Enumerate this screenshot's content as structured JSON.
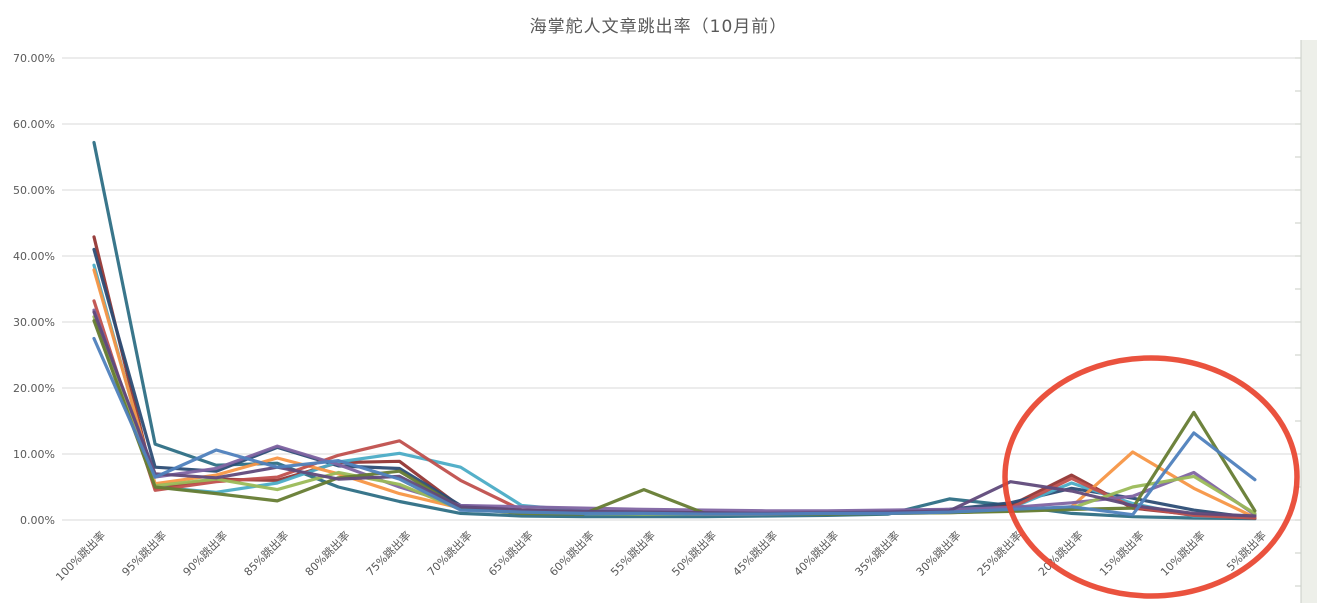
{
  "title": "海掌舵人文章跳出率（10月前）",
  "chart_data": {
    "type": "line",
    "title": "海掌舵人文章跳出率（10月前）",
    "xlabel": "",
    "ylabel": "",
    "ylim": [
      0,
      70
    ],
    "y_tick_step": 10,
    "y_ticks": [
      "0.00%",
      "10.00%",
      "20.00%",
      "30.00%",
      "40.00%",
      "50.00%",
      "60.00%",
      "70.00%"
    ],
    "grid": true,
    "legend": "none",
    "x_label_rotation_deg": -45,
    "axis_text_color": "#595959",
    "gridline_color": "#d9d9d9",
    "categories": [
      "100%跳出率",
      "95%跳出率",
      "90%跳出率",
      "85%跳出率",
      "80%跳出率",
      "75%跳出率",
      "70%跳出率",
      "65%跳出率",
      "60%跳出率",
      "55%跳出率",
      "50%跳出率",
      "45%跳出率",
      "40%跳出率",
      "35%跳出率",
      "30%跳出率",
      "25%跳出率",
      "20%跳出率",
      "15%跳出率",
      "10%跳出率",
      "5%跳出率"
    ],
    "series": [
      {
        "name": "dark-teal",
        "color": "#2E6F85",
        "values": [
          57.2,
          11.5,
          8.3,
          8.6,
          5.0,
          2.8,
          1.0,
          0.6,
          0.5,
          0.5,
          0.5,
          0.6,
          0.7,
          0.9,
          3.2,
          2.2,
          1.0,
          0.5,
          0.3,
          0.2
        ]
      },
      {
        "name": "dark-red",
        "color": "#943634",
        "values": [
          42.9,
          4.8,
          6.2,
          6.0,
          8.7,
          8.9,
          2.0,
          1.4,
          1.1,
          1.0,
          0.9,
          0.9,
          1.0,
          1.2,
          1.5,
          2.2,
          6.8,
          1.8,
          0.8,
          0.3
        ]
      },
      {
        "name": "navy",
        "color": "#2C4D75",
        "values": [
          41.0,
          8.0,
          7.4,
          11.0,
          8.2,
          7.8,
          2.2,
          1.5,
          1.3,
          1.2,
          1.1,
          1.0,
          1.0,
          1.2,
          1.6,
          2.6,
          4.8,
          3.3,
          1.5,
          0.3
        ]
      },
      {
        "name": "aqua",
        "color": "#4BACC6",
        "values": [
          38.6,
          5.0,
          4.2,
          5.6,
          8.8,
          10.1,
          8.0,
          2.2,
          1.4,
          1.1,
          1.0,
          1.0,
          1.0,
          1.1,
          1.3,
          1.8,
          5.6,
          2.5,
          0.6,
          0.4
        ]
      },
      {
        "name": "orange",
        "color": "#F79646",
        "values": [
          37.9,
          5.5,
          6.8,
          9.4,
          7.0,
          4.0,
          1.8,
          1.3,
          1.1,
          1.0,
          0.9,
          0.9,
          1.0,
          1.0,
          1.1,
          1.4,
          2.0,
          10.3,
          4.8,
          0.4
        ]
      },
      {
        "name": "red",
        "color": "#C0504D",
        "values": [
          33.2,
          4.5,
          5.8,
          6.5,
          9.8,
          12.0,
          6.0,
          1.5,
          1.2,
          1.0,
          0.9,
          0.9,
          1.0,
          1.1,
          1.3,
          1.8,
          6.3,
          2.0,
          0.7,
          0.3
        ]
      },
      {
        "name": "purple",
        "color": "#8064A2",
        "values": [
          31.8,
          6.5,
          7.8,
          11.2,
          8.4,
          5.0,
          2.2,
          2.0,
          1.8,
          1.6,
          1.5,
          1.4,
          1.4,
          1.5,
          1.6,
          1.9,
          2.6,
          3.6,
          7.2,
          0.8
        ]
      },
      {
        "name": "light-green",
        "color": "#9BBB59",
        "values": [
          30.8,
          5.2,
          6.2,
          4.6,
          7.2,
          5.4,
          1.6,
          1.2,
          1.0,
          0.9,
          0.9,
          0.9,
          1.0,
          1.0,
          1.1,
          1.4,
          1.8,
          5.0,
          6.6,
          1.0
        ]
      },
      {
        "name": "olive-green",
        "color": "#667C33",
        "values": [
          30.2,
          5.0,
          4.0,
          2.9,
          6.4,
          7.4,
          1.8,
          1.0,
          0.9,
          4.6,
          1.0,
          0.9,
          0.9,
          1.0,
          1.1,
          1.3,
          1.6,
          1.8,
          16.3,
          1.4
        ]
      },
      {
        "name": "dark-purple",
        "color": "#604A7B",
        "values": [
          31.5,
          7.0,
          6.4,
          8.0,
          6.2,
          6.6,
          2.0,
          1.5,
          1.3,
          1.2,
          1.1,
          1.0,
          1.1,
          1.2,
          1.4,
          5.8,
          4.4,
          2.2,
          1.0,
          0.6
        ]
      },
      {
        "name": "blue",
        "color": "#4F81BD",
        "values": [
          27.5,
          6.5,
          10.6,
          8.0,
          9.0,
          6.2,
          1.5,
          1.2,
          1.0,
          1.0,
          0.9,
          0.9,
          1.0,
          1.0,
          1.2,
          1.6,
          2.0,
          0.8,
          13.2,
          6.1
        ]
      }
    ],
    "annotation": {
      "shape": "ellipse",
      "stroke_color": "#E8432E",
      "meaning": "hand-drawn red oval highlighting the 25%–5% 跳出率 region with late spikes"
    }
  }
}
